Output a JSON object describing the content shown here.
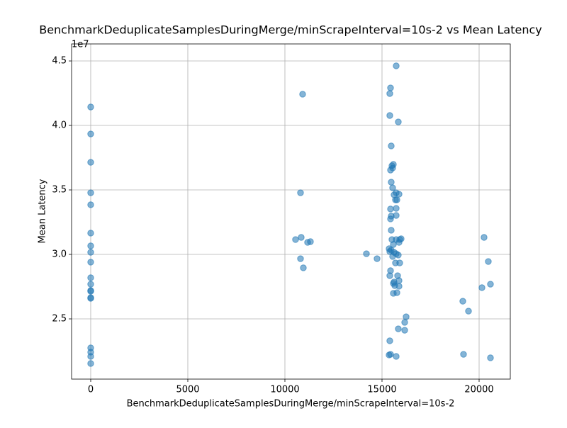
{
  "chart_data": {
    "type": "scatter",
    "title": "BenchmarkDeduplicateSamplesDuringMerge/minScrapeInterval=10s-2 vs Mean Latency",
    "x_label": "BenchmarkDeduplicateSamplesDuringMerge/minScrapeInterval=10s-2",
    "y_label": "Mean Latency",
    "y_offset_label": "1e7",
    "color": "#1f77b4",
    "grid": true,
    "xlim": [
      -985,
      21606
    ],
    "ylim": [
      2.033,
      4.632
    ],
    "xticks": [
      0,
      5000,
      10000,
      15000,
      20000
    ],
    "yticks": [
      2.5,
      {
        "value": 3,
        "label": "3.0"
      },
      3.5,
      {
        "value": 4,
        "label": "4.0"
      },
      4.5
    ],
    "x": [
      0,
      0,
      0,
      0,
      0,
      0,
      0,
      0,
      0,
      0,
      0,
      0,
      0,
      0,
      0,
      0,
      0,
      0,
      0,
      10547,
      10839,
      10803,
      10912,
      10803,
      10949,
      11168,
      11314,
      14197,
      14745,
      15730,
      15438,
      15401,
      15401,
      15839,
      15474,
      15511,
      15547,
      15438,
      15584,
      15474,
      15547,
      15620,
      15730,
      15876,
      15766,
      15693,
      15438,
      15730,
      15474,
      15730,
      15438,
      15474,
      15511,
      15730,
      15985,
      15912,
      15876,
      15584,
      15365,
      15474,
      15401,
      15620,
      15730,
      15839,
      15547,
      15693,
      15912,
      15438,
      15401,
      15803,
      15620,
      15876,
      15584,
      15657,
      15876,
      15584,
      15766,
      16241,
      16168,
      15839,
      16168,
      15401,
      15365,
      15438,
      15730,
      20255,
      20474,
      20584,
      20146,
      19161,
      19453,
      19197,
      20584
    ],
    "values": [
      4.143,
      3.934,
      3.714,
      3.478,
      3.385,
      3.165,
      3.066,
      3.016,
      2.94,
      2.819,
      2.769,
      2.72,
      2.714,
      2.665,
      2.659,
      2.275,
      2.242,
      2.209,
      2.154,
      3.115,
      3.132,
      3.478,
      4.242,
      2.967,
      2.896,
      3.093,
      3.099,
      3.005,
      2.967,
      4.462,
      4.291,
      4.247,
      4.077,
      4.027,
      3.841,
      3.687,
      3.67,
      3.654,
      3.698,
      3.56,
      3.516,
      3.462,
      3.478,
      3.467,
      3.423,
      3.423,
      3.352,
      3.357,
      3.297,
      3.302,
      3.275,
      3.187,
      3.115,
      3.115,
      3.121,
      3.115,
      3.093,
      3.077,
      3.044,
      3.033,
      3.022,
      3.016,
      3.005,
      2.995,
      2.984,
      2.934,
      2.934,
      2.874,
      2.835,
      2.835,
      2.786,
      2.797,
      2.775,
      2.758,
      2.753,
      2.698,
      2.703,
      2.516,
      2.473,
      2.423,
      2.412,
      2.33,
      2.22,
      2.225,
      2.209,
      3.132,
      2.945,
      2.769,
      2.742,
      2.637,
      2.56,
      2.225,
      2.198
    ]
  }
}
